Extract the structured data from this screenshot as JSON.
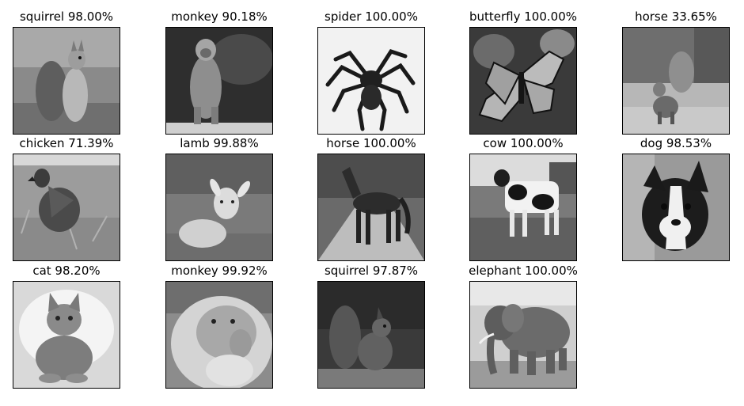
{
  "tiles": [
    {
      "label": "squirrel 98.00%",
      "subject": "squirrel-photo"
    },
    {
      "label": "monkey 90.18%",
      "subject": "monkey-photo"
    },
    {
      "label": "spider 100.00%",
      "subject": "spider-photo"
    },
    {
      "label": "butterfly 100.00%",
      "subject": "butterfly-photo"
    },
    {
      "label": "horse 33.65%",
      "subject": "squirrel-photo"
    },
    {
      "label": "chicken 71.39%",
      "subject": "chicken-photo"
    },
    {
      "label": "lamb 99.88%",
      "subject": "lamb-photo"
    },
    {
      "label": "horse 100.00%",
      "subject": "horse-photo"
    },
    {
      "label": "cow 100.00%",
      "subject": "cow-photo"
    },
    {
      "label": "dog 98.53%",
      "subject": "dog-photo"
    },
    {
      "label": "cat 98.20%",
      "subject": "cat-photo"
    },
    {
      "label": "monkey 99.92%",
      "subject": "monkey-photo"
    },
    {
      "label": "squirrel 97.87%",
      "subject": "squirrel-photo"
    },
    {
      "label": "elephant 100.00%",
      "subject": "elephant-photo"
    }
  ]
}
